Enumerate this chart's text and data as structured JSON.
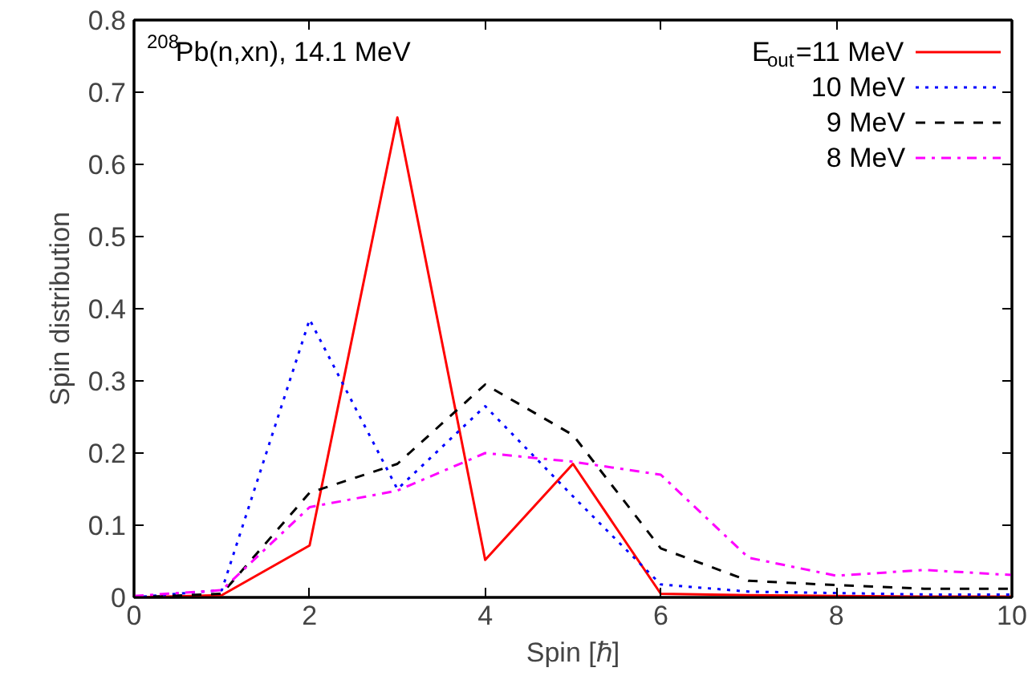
{
  "chart_data": {
    "type": "line",
    "annotations": [
      "$^{208}$Pb(n,xn), 14.1 MeV"
    ],
    "xlabel": "Spin [ℏ]",
    "ylabel": "Spin distribution",
    "x": [
      0,
      1,
      2,
      3,
      4,
      5,
      6,
      7,
      8,
      9,
      10
    ],
    "series": [
      {
        "name": "E$_{out}$=11 MeV",
        "color": "#ff0000",
        "line_style": "solid",
        "values": [
          0,
          0.003,
          0.072,
          0.665,
          0.052,
          0.185,
          0.005,
          0.003,
          0.002,
          0.001,
          0.001
        ]
      },
      {
        "name": "10 MeV",
        "color": "#0000ff",
        "line_style": "dotted",
        "values": [
          0,
          0.01,
          0.385,
          0.15,
          0.265,
          0.14,
          0.018,
          0.008,
          0.006,
          0.004,
          0.004
        ]
      },
      {
        "name": "9 MeV",
        "color": "#000000",
        "line_style": "dashed",
        "values": [
          0,
          0.005,
          0.145,
          0.185,
          0.295,
          0.225,
          0.068,
          0.023,
          0.017,
          0.012,
          0.012
        ]
      },
      {
        "name": "8 MeV",
        "color": "#ff00ff",
        "line_style": "dashdot",
        "values": [
          0.002,
          0.01,
          0.125,
          0.148,
          0.2,
          0.188,
          0.17,
          0.055,
          0.03,
          0.038,
          0.031
        ]
      }
    ],
    "xlim": [
      0,
      10
    ],
    "ylim": [
      0,
      0.8
    ],
    "xticks": [
      0,
      2,
      4,
      6,
      8,
      10
    ],
    "yticks": [
      0,
      0.1,
      0.2,
      0.3,
      0.4,
      0.5,
      0.6,
      0.7,
      0.8
    ],
    "legend": "top right",
    "grid": false
  }
}
